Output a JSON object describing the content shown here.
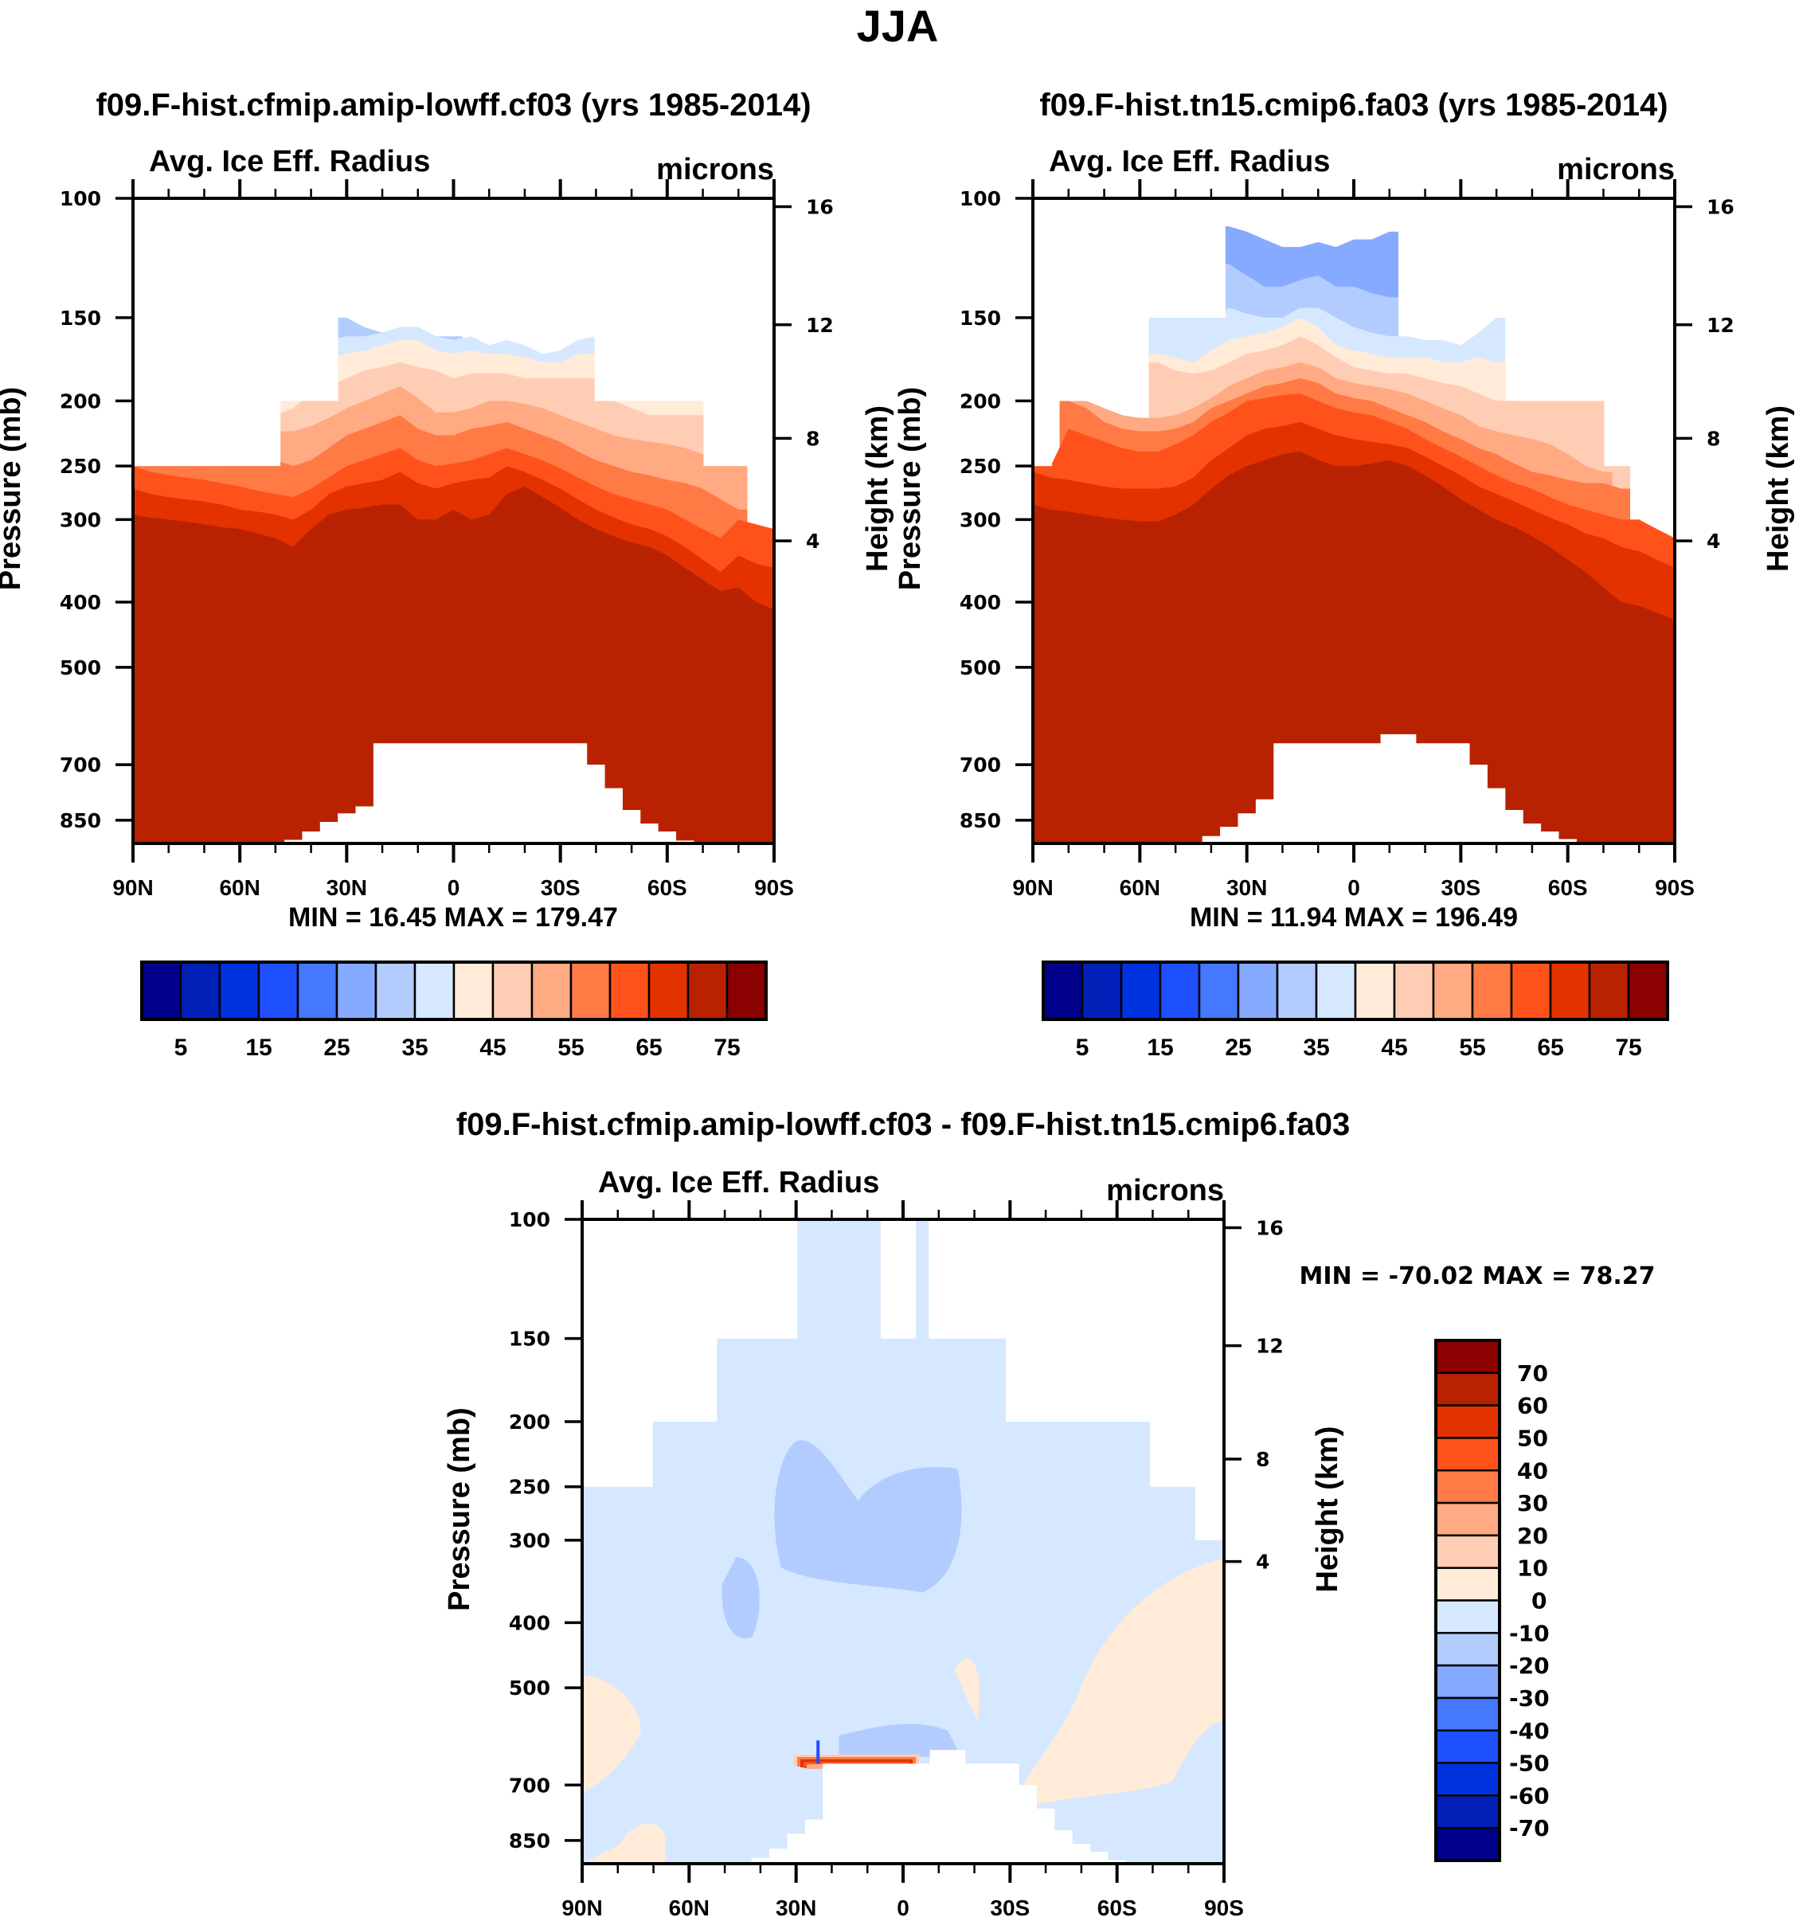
{
  "figure": {
    "main_title": "JJA"
  },
  "chart_data": [
    {
      "id": "panel_test",
      "type": "heatmap",
      "title": "f09.F-hist.cfmip.amip-lowff.cf03 (yrs 1985-2014)",
      "left_label": "Avg. Ice Eff. Radius",
      "right_label": "microns",
      "ylabel": "Pressure (mb)",
      "ylabel_right": "Height (km)",
      "xlabel": "",
      "x_ticks": [
        "90N",
        "60N",
        "30N",
        "0",
        "30S",
        "60S",
        "90S"
      ],
      "x_range": [
        90,
        -90
      ],
      "y_ticks": [
        100,
        150,
        200,
        250,
        300,
        400,
        500,
        700,
        850
      ],
      "y_range_mb": [
        100,
        1000
      ],
      "y_right_ticks": [
        16,
        12,
        8,
        4
      ],
      "min_label": "MIN =  16.45  MAX = 179.47",
      "min": 16.45,
      "max": 179.47,
      "colorbar": {
        "orientation": "horizontal",
        "levels": [
          5,
          10,
          15,
          20,
          25,
          30,
          35,
          40,
          45,
          50,
          55,
          60,
          65,
          70,
          75
        ],
        "labels": [
          "5",
          "15",
          "25",
          "35",
          "45",
          "55",
          "65",
          "75"
        ]
      },
      "description": "Ice effective radius increases downward; <40 microns above ~150 mb in tropics, >75 microns below ~350 mb; missing near surface in tropics/subtropics (below ~650 mb) and above 150-250 mb outside tropics",
      "layers": [
        {
          "level_upper": 35,
          "top_mb": [
            null,
            null,
            null,
            null,
            null,
            null,
            null,
            null,
            null,
            150,
            150,
            148,
            150,
            155,
            158,
            155,
            155,
            160,
            160,
            null,
            null,
            null,
            null,
            null,
            null,
            null,
            null,
            null,
            null,
            null,
            null,
            null,
            null,
            null,
            null,
            null,
            null
          ]
        },
        {
          "level_upper": 40,
          "top_mb": [
            null,
            null,
            null,
            null,
            null,
            null,
            null,
            null,
            null,
            160,
            162,
            162,
            160,
            160,
            158,
            155,
            155,
            160,
            162,
            160,
            165,
            162,
            165,
            170,
            168,
            162,
            160,
            null,
            null,
            null,
            null,
            null,
            null,
            null,
            null,
            null,
            null
          ]
        },
        {
          "level_upper": 45,
          "top_mb": [
            null,
            null,
            null,
            null,
            null,
            null,
            200,
            200,
            200,
            195,
            180,
            172,
            170,
            168,
            165,
            162,
            162,
            168,
            170,
            168,
            170,
            170,
            172,
            175,
            175,
            170,
            170,
            200,
            200,
            200,
            200,
            200,
            200,
            200,
            200,
            null,
            null
          ]
        },
        {
          "level_upper": 50,
          "top_mb": [
            null,
            null,
            null,
            null,
            null,
            null,
            205,
            208,
            210,
            205,
            195,
            190,
            185,
            180,
            178,
            175,
            178,
            180,
            185,
            182,
            182,
            182,
            185,
            185,
            185,
            185,
            185,
            200,
            205,
            210,
            210,
            210,
            210,
            210,
            215,
            null,
            null
          ]
        },
        {
          "level_upper": 55,
          "top_mb": [
            250,
            250,
            250,
            250,
            250,
            250,
            215,
            220,
            222,
            222,
            218,
            212,
            205,
            200,
            195,
            190,
            198,
            208,
            208,
            205,
            200,
            200,
            202,
            205,
            210,
            215,
            220,
            225,
            228,
            230,
            232,
            235,
            240,
            245,
            250,
            null,
            null
          ]
        },
        {
          "level_upper": 60,
          "top_mb": [
            250,
            250,
            250,
            250,
            250,
            250,
            235,
            240,
            245,
            250,
            245,
            235,
            225,
            220,
            215,
            210,
            220,
            225,
            225,
            220,
            218,
            215,
            220,
            225,
            230,
            238,
            245,
            250,
            255,
            258,
            262,
            265,
            270,
            280,
            290,
            null,
            null
          ]
        },
        {
          "level_upper": 65,
          "top_mb": [
            250,
            255,
            258,
            260,
            262,
            265,
            268,
            272,
            275,
            278,
            270,
            260,
            250,
            245,
            240,
            235,
            245,
            250,
            248,
            245,
            240,
            235,
            240,
            245,
            252,
            260,
            268,
            275,
            280,
            285,
            290,
            300,
            310,
            320,
            300,
            305,
            310
          ]
        },
        {
          "level_upper": 70,
          "top_mb": [
            270,
            275,
            278,
            280,
            282,
            285,
            290,
            292,
            295,
            300,
            290,
            275,
            268,
            265,
            262,
            255,
            265,
            270,
            265,
            262,
            260,
            250,
            255,
            262,
            270,
            280,
            290,
            298,
            305,
            310,
            318,
            330,
            345,
            360,
            340,
            350,
            355
          ]
        },
        {
          "level_upper": 75,
          "top_mb": [
            295,
            298,
            300,
            302,
            305,
            308,
            310,
            315,
            320,
            330,
            310,
            295,
            290,
            288,
            285,
            285,
            300,
            300,
            290,
            300,
            295,
            275,
            268,
            278,
            288,
            300,
            310,
            318,
            325,
            330,
            340,
            355,
            370,
            385,
            380,
            400,
            410
          ]
        }
      ],
      "missing_below_mb": [
        1000,
        1000,
        1000,
        1000,
        1000,
        1000,
        1000,
        1000,
        1000,
        975,
        920,
        860,
        830,
        810,
        650,
        650,
        650,
        650,
        650,
        650,
        650,
        650,
        650,
        650,
        650,
        650,
        700,
        760,
        820,
        870,
        920,
        980,
        1000,
        1000,
        1000,
        1000,
        1000
      ]
    },
    {
      "id": "panel_ctrl",
      "type": "heatmap",
      "title": "f09.F-hist.tn15.cmip6.fa03 (yrs 1985-2014)",
      "left_label": "Avg. Ice Eff. Radius",
      "right_label": "microns",
      "ylabel": "Pressure (mb)",
      "ylabel_right": "Height (km)",
      "xlabel": "",
      "x_ticks": [
        "90N",
        "60N",
        "30N",
        "0",
        "30S",
        "60S",
        "90S"
      ],
      "x_range": [
        90,
        -90
      ],
      "y_ticks": [
        100,
        150,
        200,
        250,
        300,
        400,
        500,
        700,
        850
      ],
      "y_range_mb": [
        100,
        1000
      ],
      "y_right_ticks": [
        16,
        12,
        8,
        4
      ],
      "min_label": "MIN =  11.94  MAX = 196.49",
      "min": 11.94,
      "max": 196.49,
      "colorbar": {
        "orientation": "horizontal",
        "levels": [
          5,
          10,
          15,
          20,
          25,
          30,
          35,
          40,
          45,
          50,
          55,
          60,
          65,
          70,
          75
        ],
        "labels": [
          "5",
          "15",
          "25",
          "35",
          "45",
          "55",
          "65",
          "75"
        ]
      },
      "description": "Similar structure to test panel with larger radii at mid levels; values <35 microns near 100 mb in tropics",
      "layers": [
        {
          "level_upper": 30,
          "top_mb": [
            null,
            null,
            null,
            null,
            null,
            null,
            null,
            null,
            null,
            null,
            null,
            110,
            112,
            115,
            118,
            118,
            116,
            118,
            115,
            115,
            112,
            null,
            null,
            null,
            null,
            null,
            null,
            null,
            null,
            null,
            null,
            null,
            null,
            null,
            null,
            null,
            null
          ]
        },
        {
          "level_upper": 35,
          "top_mb": [
            null,
            null,
            null,
            null,
            null,
            null,
            null,
            null,
            null,
            null,
            null,
            125,
            130,
            135,
            135,
            132,
            130,
            135,
            135,
            138,
            140,
            null,
            null,
            null,
            null,
            null,
            null,
            null,
            null,
            null,
            null,
            null,
            null,
            null,
            null,
            null,
            null
          ]
        },
        {
          "level_upper": 40,
          "top_mb": [
            null,
            null,
            null,
            null,
            null,
            null,
            null,
            150,
            150,
            150,
            150,
            145,
            148,
            150,
            150,
            145,
            145,
            150,
            155,
            158,
            160,
            160,
            162,
            162,
            165,
            158,
            150,
            null,
            null,
            null,
            null,
            null,
            null,
            null,
            null,
            null,
            null
          ]
        },
        {
          "level_upper": 45,
          "top_mb": [
            null,
            null,
            null,
            null,
            null,
            null,
            null,
            170,
            172,
            175,
            168,
            162,
            160,
            158,
            155,
            150,
            155,
            165,
            168,
            170,
            172,
            172,
            172,
            175,
            175,
            172,
            175,
            null,
            null,
            null,
            null,
            null,
            null,
            null,
            null,
            null,
            null
          ]
        },
        {
          "level_upper": 50,
          "top_mb": [
            null,
            null,
            null,
            null,
            null,
            null,
            null,
            175,
            180,
            182,
            180,
            175,
            170,
            168,
            165,
            160,
            165,
            172,
            178,
            180,
            182,
            182,
            185,
            188,
            190,
            195,
            200,
            200,
            200,
            200,
            200,
            200,
            200,
            200,
            null,
            null,
            null
          ]
        },
        {
          "level_upper": 55,
          "top_mb": [
            null,
            null,
            200,
            200,
            205,
            210,
            212,
            212,
            210,
            205,
            198,
            190,
            185,
            180,
            178,
            175,
            178,
            185,
            188,
            190,
            192,
            195,
            200,
            205,
            210,
            218,
            222,
            225,
            228,
            232,
            240,
            250,
            255,
            null,
            null,
            null,
            null
          ]
        },
        {
          "level_upper": 60,
          "top_mb": [
            null,
            null,
            200,
            205,
            215,
            220,
            222,
            222,
            220,
            215,
            205,
            200,
            195,
            190,
            188,
            185,
            188,
            195,
            198,
            200,
            205,
            210,
            215,
            222,
            228,
            235,
            240,
            248,
            255,
            258,
            262,
            265,
            265,
            270,
            null,
            null,
            null
          ]
        },
        {
          "level_upper": 65,
          "top_mb": [
            250,
            250,
            220,
            225,
            230,
            235,
            238,
            238,
            232,
            225,
            215,
            208,
            200,
            198,
            196,
            195,
            200,
            205,
            208,
            210,
            215,
            220,
            228,
            235,
            242,
            250,
            258,
            265,
            270,
            278,
            285,
            290,
            295,
            300,
            300,
            310,
            320
          ]
        },
        {
          "level_upper": 70,
          "top_mb": [
            255,
            260,
            262,
            265,
            268,
            270,
            270,
            270,
            268,
            260,
            245,
            235,
            225,
            220,
            218,
            215,
            220,
            225,
            228,
            230,
            232,
            235,
            242,
            250,
            258,
            268,
            275,
            282,
            290,
            298,
            305,
            315,
            320,
            330,
            335,
            345,
            355
          ]
        },
        {
          "level_upper": 75,
          "top_mb": [
            285,
            290,
            292,
            295,
            298,
            300,
            302,
            302,
            295,
            285,
            270,
            258,
            250,
            245,
            240,
            238,
            245,
            250,
            250,
            248,
            245,
            250,
            258,
            268,
            280,
            290,
            300,
            308,
            318,
            330,
            345,
            360,
            380,
            400,
            405,
            415,
            425
          ]
        }
      ],
      "missing_below_mb": [
        1000,
        1000,
        1000,
        1000,
        1000,
        1000,
        1000,
        1000,
        1000,
        1000,
        950,
        890,
        830,
        790,
        650,
        650,
        650,
        650,
        650,
        650,
        630,
        630,
        650,
        650,
        650,
        700,
        760,
        820,
        870,
        920,
        970,
        1000,
        1000,
        1000,
        1000,
        1000,
        1000
      ]
    },
    {
      "id": "panel_diff",
      "type": "heatmap",
      "title": "f09.F-hist.cfmip.amip-lowff.cf03 - f09.F-hist.tn15.cmip6.fa03",
      "left_label": "Avg. Ice Eff. Radius",
      "right_label": "microns",
      "ylabel": "Pressure (mb)",
      "ylabel_right": "Height (km)",
      "xlabel": "",
      "x_ticks": [
        "90N",
        "60N",
        "30N",
        "0",
        "30S",
        "60S",
        "90S"
      ],
      "x_range": [
        90,
        -90
      ],
      "y_ticks": [
        100,
        150,
        200,
        250,
        300,
        400,
        500,
        700,
        850
      ],
      "y_range_mb": [
        100,
        1000
      ],
      "y_right_ticks": [
        16,
        12,
        8,
        4
      ],
      "min_label": "MIN = -70.02  MAX =  78.27",
      "min": -70.02,
      "max": 78.27,
      "colorbar": {
        "orientation": "vertical",
        "levels": [
          -70,
          -60,
          -50,
          -40,
          -30,
          -20,
          -10,
          0,
          10,
          20,
          30,
          40,
          50,
          60,
          70
        ],
        "labels": [
          "70",
          "60",
          "50",
          "40",
          "30",
          "20",
          "10",
          "0",
          "-10",
          "-20",
          "-30",
          "-40",
          "-50",
          "-60",
          "-70"
        ]
      },
      "description": "Mostly -10 to 0 microns; -20 to -10 patches near 15N-10S at 200-350 mb and near 40N 350-450 mb; 0 to 10 in southern high latitudes below 300 mb; strong +/- near 650 mb tropical boundary"
    }
  ],
  "palette": {
    "colors": [
      "#00008b",
      "#0020b8",
      "#0033e0",
      "#1f50ff",
      "#4478ff",
      "#85aaff",
      "#b3ccff",
      "#d6e8ff",
      "#ffebd8",
      "#ffcdb3",
      "#ffaa82",
      "#ff7a45",
      "#ff521a",
      "#e33200",
      "#b82200",
      "#8b0000"
    ]
  }
}
